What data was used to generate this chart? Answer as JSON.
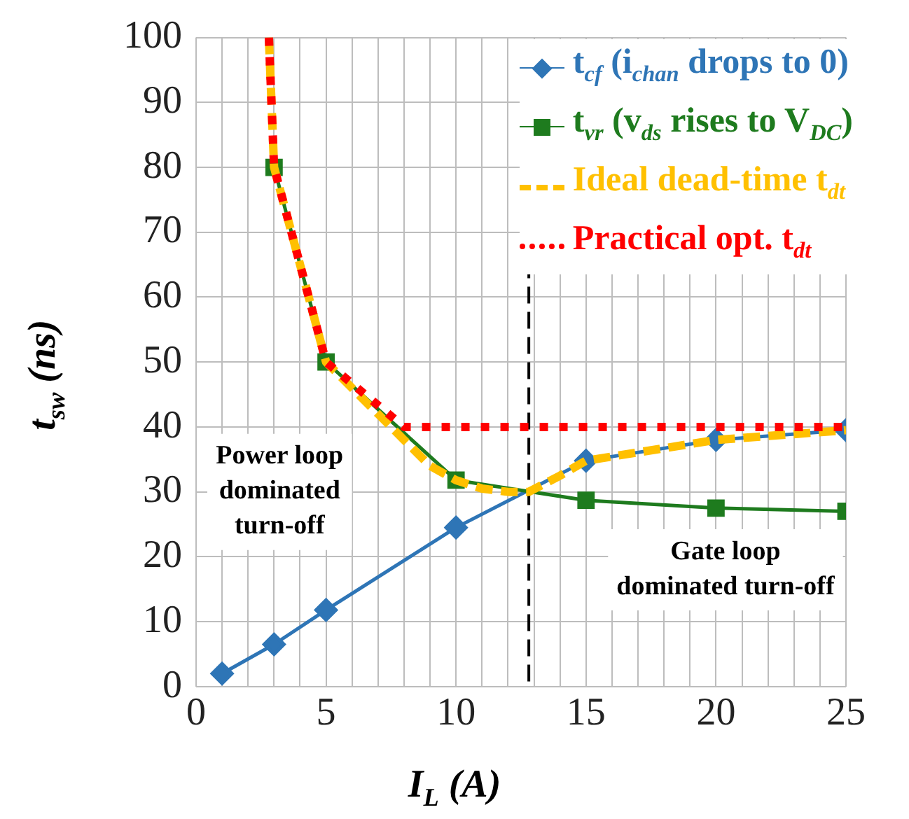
{
  "chart_data": {
    "type": "line",
    "xlabel": "I$_{L}$ (A)",
    "ylabel": "t$_{sw}$ (ns)",
    "xlim": [
      0,
      25
    ],
    "xticks": [
      0,
      {
        "value": 1,
        "label": null
      },
      {
        "value": 2,
        "label": null
      },
      {
        "value": 3,
        "label": null
      },
      {
        "value": 4,
        "label": null
      },
      5,
      {
        "value": 6,
        "label": null
      },
      {
        "value": 7,
        "label": null
      },
      {
        "value": 8,
        "label": null
      },
      {
        "value": 9,
        "label": null
      },
      10,
      {
        "value": 11,
        "label": null
      },
      {
        "value": 12,
        "label": null
      },
      {
        "value": 13,
        "label": null
      },
      {
        "value": 14,
        "label": null
      },
      15,
      {
        "value": 16,
        "label": null
      },
      {
        "value": 17,
        "label": null
      },
      {
        "value": 18,
        "label": null
      },
      {
        "value": 19,
        "label": null
      },
      20,
      {
        "value": 21,
        "label": null
      },
      {
        "value": 22,
        "label": null
      },
      {
        "value": 23,
        "label": null
      },
      {
        "value": 24,
        "label": null
      },
      25
    ],
    "ylim": [
      0,
      100
    ],
    "yticks": [
      0,
      10,
      20,
      30,
      40,
      50,
      60,
      70,
      80,
      90,
      100
    ],
    "grid": true,
    "legend": "top right",
    "series": [
      {
        "name": "t$_{cf}$ (i$_{chan}$ drops to 0)",
        "color": "#2e75b6",
        "marker": "diamond",
        "line_style": "solid",
        "x": [
          1,
          3,
          5,
          10,
          15,
          20,
          25
        ],
        "values": [
          2,
          6.5,
          11.8,
          24.5,
          34.8,
          38,
          39.5
        ]
      },
      {
        "name": "t$_{vr}$ (v$_{ds}$ rises to V$_{DC}$)",
        "color": "#1e7b1e",
        "marker": "square",
        "line_style": "solid",
        "x": [
          3,
          5,
          10,
          15,
          20,
          25
        ],
        "values": [
          80,
          50,
          31.8,
          28.7,
          27.5,
          27
        ]
      },
      {
        "name": "Ideal dead-time t$_{dt}$",
        "color": "#ffc000",
        "marker": "none",
        "line_style": "dashed",
        "x": [
          2.8,
          3,
          5,
          7,
          8,
          9,
          10,
          11,
          12,
          12.8,
          14,
          15,
          20,
          25
        ],
        "values": [
          100,
          80,
          50,
          42,
          38,
          34,
          31.8,
          30.5,
          30,
          30,
          32.5,
          34.8,
          38,
          39.5
        ]
      },
      {
        "name": "Practical opt. t$_{dt}$",
        "color": "#ff0000",
        "marker": "none",
        "line_style": "dotted",
        "x": [
          2.8,
          3,
          5,
          8,
          25
        ],
        "values": [
          100,
          80,
          50,
          40,
          40
        ]
      }
    ],
    "ref_lines": [
      {
        "axis": "x",
        "value": 12.8,
        "color": "#000000",
        "line_style": "dashed"
      }
    ],
    "annotations": [
      "Power loop\ndominated\nturn-off",
      "Gate loop\ndominated turn-off"
    ]
  }
}
